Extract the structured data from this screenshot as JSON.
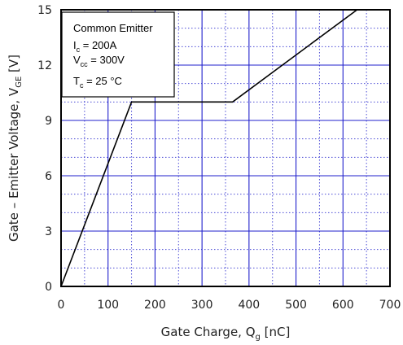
{
  "chart_data": {
    "type": "line",
    "xlabel": {
      "text": "Gate Charge, Q",
      "sub": "g",
      "unit": " [nC]"
    },
    "ylabel": {
      "text": "Gate – Emitter Voltage, V",
      "sub": "GE",
      "unit": " [V]"
    },
    "xlim": [
      0,
      700
    ],
    "ylim": [
      0,
      15
    ],
    "x_ticks": [
      0,
      100,
      200,
      300,
      400,
      500,
      600,
      700
    ],
    "y_ticks": [
      0,
      3,
      6,
      9,
      12,
      15
    ],
    "x_tick_labels": [
      "0",
      "100",
      "200",
      "300",
      "400",
      "500",
      "600",
      "700"
    ],
    "y_tick_labels": [
      "0",
      "3",
      "6",
      "9",
      "12",
      "15"
    ],
    "grid": {
      "major": true,
      "minor_dotted": true,
      "color": "#2020cc"
    },
    "legend_position": "top-left",
    "annotation": {
      "title": "Common Emitter",
      "lines": [
        {
          "main": "I",
          "sub": "c",
          "rest": " = 200A"
        },
        {
          "main": "V",
          "sub": "cc",
          "rest": " = 300V"
        },
        {
          "main": "T",
          "sub": "c",
          "rest": " = 25 °C"
        }
      ]
    },
    "series": [
      {
        "color": "#000000",
        "x": [
          0,
          150,
          365,
          630
        ],
        "y": [
          0,
          10.0,
          10.0,
          15.0
        ]
      }
    ]
  }
}
